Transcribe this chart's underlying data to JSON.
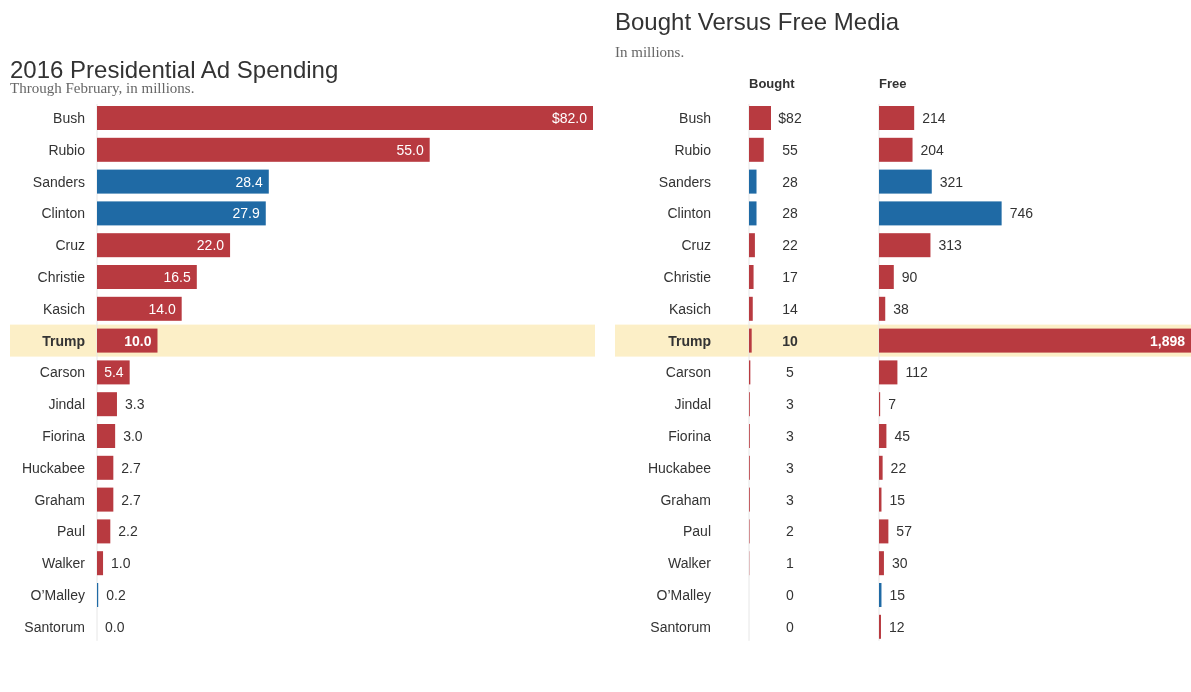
{
  "chart_data": [
    {
      "type": "bar",
      "orientation": "horizontal",
      "title": "2016 Presidential Ad Spending",
      "subtitle": "Through February, in millions.",
      "categories": [
        "Bush",
        "Rubio",
        "Sanders",
        "Clinton",
        "Cruz",
        "Christie",
        "Kasich",
        "Trump",
        "Carson",
        "Jindal",
        "Fiorina",
        "Huckabee",
        "Graham",
        "Paul",
        "Walker",
        "O’Malley",
        "Santorum"
      ],
      "values": [
        82.0,
        55.0,
        28.4,
        27.9,
        22.0,
        16.5,
        14.0,
        10.0,
        5.4,
        3.3,
        3.0,
        2.7,
        2.7,
        2.2,
        1.0,
        0.2,
        0.0
      ],
      "colors": [
        "#b83a40",
        "#b83a40",
        "#1f6aa5",
        "#1f6aa5",
        "#b83a40",
        "#b83a40",
        "#b83a40",
        "#b83a40",
        "#b83a40",
        "#b83a40",
        "#b83a40",
        "#b83a40",
        "#b83a40",
        "#b83a40",
        "#b83a40",
        "#1f6aa5",
        "#b83a40"
      ],
      "value_labels": [
        "$82.0",
        "55.0",
        "28.4",
        "27.9",
        "22.0",
        "16.5",
        "14.0",
        "10.0",
        "5.4",
        "3.3",
        "3.0",
        "2.7",
        "2.7",
        "2.2",
        "1.0",
        "0.2",
        "0.0"
      ],
      "bands": [
        {
          "axis": "y",
          "from": "Trump",
          "to": "Trump",
          "color": "#fcefc7"
        }
      ]
    },
    {
      "type": "bar",
      "orientation": "horizontal",
      "title": "Bought Versus Free Media",
      "subtitle": "In millions.",
      "xlabel": "Bought",
      "categories": [
        "Bush",
        "Rubio",
        "Sanders",
        "Clinton",
        "Cruz",
        "Christie",
        "Kasich",
        "Trump",
        "Carson",
        "Jindal",
        "Fiorina",
        "Huckabee",
        "Graham",
        "Paul",
        "Walker",
        "O’Malley",
        "Santorum"
      ],
      "values": [
        82,
        55,
        28,
        28,
        22,
        17,
        14,
        10,
        5,
        3,
        3,
        3,
        3,
        2,
        1,
        0,
        0
      ],
      "colors": [
        "#b83a40",
        "#b83a40",
        "#1f6aa5",
        "#1f6aa5",
        "#b83a40",
        "#b83a40",
        "#b83a40",
        "#b83a40",
        "#b83a40",
        "#b83a40",
        "#b83a40",
        "#b83a40",
        "#b83a40",
        "#b83a40",
        "#b83a40",
        "#1f6aa5",
        "#b83a40"
      ],
      "value_labels": [
        "$82",
        "55",
        "28",
        "28",
        "22",
        "17",
        "14",
        "10",
        "5",
        "3",
        "3",
        "3",
        "3",
        "2",
        "1",
        "0",
        "0"
      ],
      "bands": [
        {
          "axis": "y",
          "from": "Trump",
          "to": "Trump",
          "color": "#fcefc7"
        }
      ]
    },
    {
      "type": "bar",
      "orientation": "horizontal",
      "xlabel": "Free",
      "tick_labels": false,
      "categories": [
        "Bush",
        "Rubio",
        "Sanders",
        "Clinton",
        "Cruz",
        "Christie",
        "Kasich",
        "Trump",
        "Carson",
        "Jindal",
        "Fiorina",
        "Huckabee",
        "Graham",
        "Paul",
        "Walker",
        "O’Malley",
        "Santorum"
      ],
      "values": [
        214,
        204,
        321,
        746,
        313,
        90,
        38,
        1898,
        112,
        7,
        45,
        22,
        15,
        57,
        30,
        15,
        12
      ],
      "colors": [
        "#b83a40",
        "#b83a40",
        "#1f6aa5",
        "#1f6aa5",
        "#b83a40",
        "#b83a40",
        "#b83a40",
        "#b83a40",
        "#b83a40",
        "#b83a40",
        "#b83a40",
        "#b83a40",
        "#b83a40",
        "#b83a40",
        "#b83a40",
        "#1f6aa5",
        "#b83a40"
      ],
      "value_labels": [
        "214",
        "204",
        "321",
        "746",
        "313",
        "90",
        "38",
        "1,898",
        "112",
        "7",
        "45",
        "22",
        "15",
        "57",
        "30",
        "15",
        "12"
      ],
      "bands": [
        {
          "axis": "y",
          "from": "Trump",
          "to": "Trump",
          "color": "#fcefc7"
        }
      ]
    }
  ]
}
